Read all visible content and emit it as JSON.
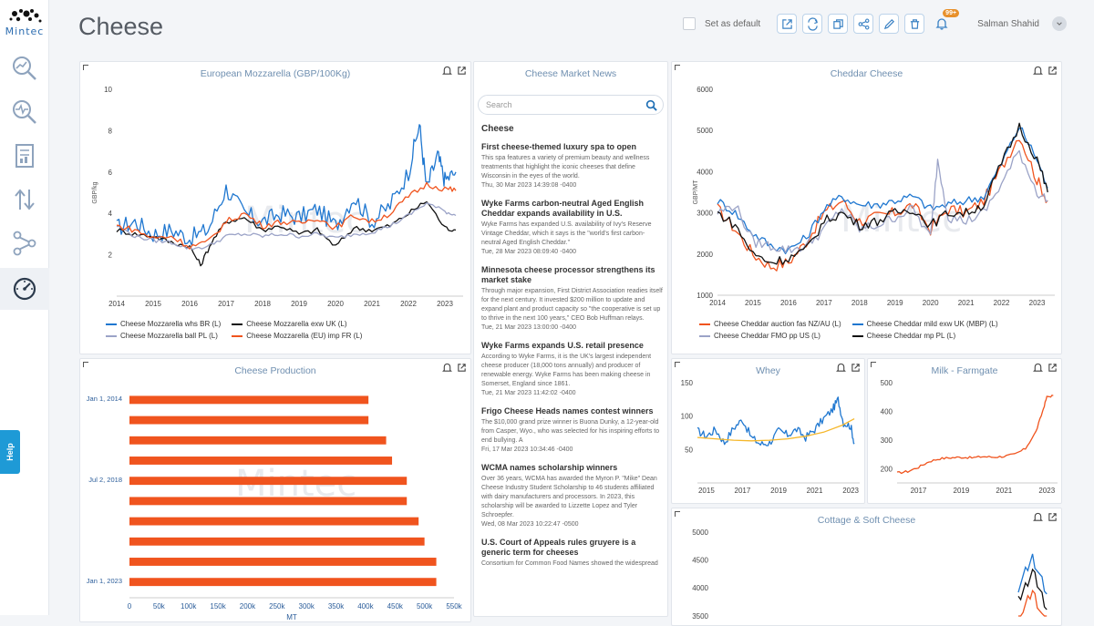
{
  "app": {
    "logo_text": "Mintec",
    "help_label": "Help",
    "watermark": "Mintec"
  },
  "sidebar": {
    "items": [
      {
        "name": "analytics",
        "icon": "search-chart-icon"
      },
      {
        "name": "market-monitor",
        "icon": "pulse-search-icon"
      },
      {
        "name": "reports",
        "icon": "report-icon"
      },
      {
        "name": "trade",
        "icon": "arrows-updown-icon"
      },
      {
        "name": "network",
        "icon": "network-icon"
      },
      {
        "name": "dashboards",
        "icon": "gauge-icon",
        "active": true
      }
    ]
  },
  "header": {
    "title": "Cheese",
    "set_default_label": "Set as default",
    "notification_badge": "99+",
    "user_name": "Salman Shahid"
  },
  "colors": {
    "blue": "#1f77d0",
    "black": "#111111",
    "grey": "#9ba3c7",
    "orange": "#f0541e",
    "yellow": "#f5b72a",
    "bar": "#f0541e"
  },
  "panels": {
    "mozzarella": {
      "title": "European Mozzarella (GBP/100Kg)",
      "ylabel": "GBP/kg",
      "yticks": [
        "2",
        "4",
        "6",
        "8",
        "10"
      ],
      "xticks": [
        "2014",
        "2015",
        "2016",
        "2017",
        "2018",
        "2019",
        "2020",
        "2021",
        "2022",
        "2023"
      ],
      "legend": [
        {
          "label": "Cheese Mozzarella whs BR (L)",
          "color": "#1f77d0"
        },
        {
          "label": "Cheese Mozzarella exw UK (L)",
          "color": "#111111"
        },
        {
          "label": "Cheese Mozzarella ball PL (L)",
          "color": "#9ba3c7"
        },
        {
          "label": "Cheese Mozzarella (EU) imp FR (L)",
          "color": "#f0541e"
        }
      ]
    },
    "news": {
      "title": "Cheese Market News",
      "search_placeholder": "Search",
      "section": "Cheese",
      "items": [
        {
          "headline": "First cheese-themed luxury spa to open",
          "summary": "This spa features a variety of premium beauty and wellness treatments that highlight the iconic cheeses that define Wisconsin in the eyes of the world.",
          "date": "Thu, 30 Mar 2023 14:39:08 -0400"
        },
        {
          "headline": "Wyke Farms carbon-neutral Aged English Cheddar expands availability in U.S.",
          "summary": "Wyke Farms has expanded U.S. availability of Ivy's Reserve Vintage Cheddar, which it says is the \"world's first carbon-neutral Aged English Cheddar.\"",
          "date": "Tue, 28 Mar 2023 08:09:40 -0400"
        },
        {
          "headline": "Minnesota cheese processor strengthens its market stake",
          "summary": "Through major expansion, First District Association readies itself for the next century. It invested $200 million to update and expand plant and product capacity so \"the cooperative is set up to thrive in the next 100 years,\" CEO Bob Huffman relays.",
          "date": "Tue, 21 Mar 2023 13:00:00 -0400"
        },
        {
          "headline": "Wyke Farms expands U.S. retail presence",
          "summary": "According to Wyke Farms, it is the UK's largest independent cheese producer (18,000 tons annually) and producer of renewable energy. Wyke Farms has been making cheese in Somerset, England since 1861.",
          "date": "Tue, 21 Mar 2023 11:42:02 -0400"
        },
        {
          "headline": "Frigo Cheese Heads names contest winners",
          "summary": "The $10,000 grand prize winner is Buona Dunky, a 12-year-old from Casper, Wyo., who was selected for his inspiring efforts to end bullying. A",
          "date": "Fri, 17 Mar 2023 10:34:46 -0400"
        },
        {
          "headline": "WCMA names scholarship winners",
          "summary": "Over 36 years, WCMA has awarded the Myron P. \"Mike\" Dean Cheese Industry Student Scholarship to 46 students affiliated with dairy manufacturers and processors. In 2023, this scholarship will be awarded to Lizzette Lopez and Tyler Schroepfer.",
          "date": "Wed, 08 Mar 2023 10:22:47 -0500"
        },
        {
          "headline": "U.S. Court of Appeals rules gruyere is a generic term for cheeses",
          "summary": "Consortium for Common Food Names showed the widespread",
          "date": ""
        }
      ]
    },
    "cheddar": {
      "title": "Cheddar Cheese",
      "ylabel": "GBP/MT",
      "yticks": [
        "1000",
        "2000",
        "3000",
        "4000",
        "5000",
        "6000"
      ],
      "xticks": [
        "2014",
        "2015",
        "2016",
        "2017",
        "2018",
        "2019",
        "2020",
        "2021",
        "2022",
        "2023"
      ],
      "legend": [
        {
          "label": "Cheese Cheddar auction fas NZ/AU (L)",
          "color": "#f0541e"
        },
        {
          "label": "Cheese Cheddar mild exw UK (MBP) (L)",
          "color": "#1f77d0"
        },
        {
          "label": "Cheese Cheddar FMO pp US (L)",
          "color": "#9ba3c7"
        },
        {
          "label": "Cheese Cheddar mp PL (L)",
          "color": "#111111"
        }
      ]
    },
    "production": {
      "title": "Cheese Production",
      "xlabel": "MT",
      "xticks": [
        "0",
        "50k",
        "100k",
        "150k",
        "200k",
        "250k",
        "300k",
        "350k",
        "400k",
        "450k",
        "500k",
        "550k"
      ],
      "ylabels": [
        "Jan 1, 2014",
        "Jul 2, 2018",
        "Jan 1, 2023"
      ]
    },
    "whey": {
      "title": "Whey",
      "yticks": [
        "50",
        "100",
        "150"
      ],
      "xticks": [
        "2015",
        "2017",
        "2019",
        "2021",
        "2023"
      ]
    },
    "milk": {
      "title": "Milk - Farmgate",
      "yticks": [
        "200",
        "300",
        "400",
        "500"
      ],
      "xticks": [
        "2017",
        "2019",
        "2021",
        "2023"
      ]
    },
    "cottage": {
      "title": "Cottage & Soft Cheese",
      "yticks": [
        "3500",
        "4000",
        "4500",
        "5000"
      ]
    }
  },
  "chart_data": [
    {
      "type": "line",
      "title": "European Mozzarella (GBP/100Kg)",
      "ylabel": "GBP/kg",
      "xlim": [
        2014,
        2023.5
      ],
      "ylim": [
        0,
        10
      ],
      "grid": false,
      "legend_position": "bottom",
      "series": [
        {
          "name": "Cheese Mozzarella whs BR (L)",
          "x": [
            2014,
            2014.5,
            2015,
            2015.5,
            2016,
            2016.5,
            2017,
            2017.5,
            2018,
            2018.5,
            2019,
            2019.5,
            2020,
            2020.5,
            2021,
            2021.5,
            2022,
            2022.3,
            2022.5,
            2022.8,
            2023,
            2023.3
          ],
          "y": [
            3.3,
            3.6,
            3.0,
            3.2,
            2.8,
            3.2,
            5.2,
            4.0,
            3.6,
            4.0,
            3.8,
            4.2,
            3.4,
            4.8,
            3.6,
            4.4,
            6.0,
            8.3,
            5.2,
            6.8,
            5.6,
            6.0
          ]
        },
        {
          "name": "Cheese Mozzarella exw UK (L)",
          "x": [
            2014,
            2014.5,
            2015,
            2015.5,
            2016,
            2016.3,
            2016.6,
            2017,
            2017.5,
            2018,
            2018.5,
            2019,
            2019.5,
            2020,
            2020.5,
            2021,
            2021.5,
            2022,
            2022.5,
            2023,
            2023.3
          ],
          "y": [
            3.2,
            3.0,
            2.9,
            2.6,
            2.4,
            1.5,
            2.6,
            3.6,
            3.8,
            3.2,
            3.4,
            3.0,
            3.2,
            2.4,
            3.3,
            3.2,
            3.4,
            4.0,
            4.6,
            3.3,
            3.2
          ]
        },
        {
          "name": "Cheese Mozzarella ball PL (L)",
          "x": [
            2014,
            2014.5,
            2015,
            2015.5,
            2016,
            2016.5,
            2017,
            2017.5,
            2018,
            2018.5,
            2019,
            2019.5,
            2020,
            2020.5,
            2021,
            2021.5,
            2022,
            2022.5,
            2023,
            2023.3
          ],
          "y": [
            3.4,
            2.9,
            2.7,
            2.6,
            2.3,
            2.4,
            2.9,
            3.0,
            2.9,
            3.0,
            2.9,
            3.0,
            2.8,
            3.0,
            3.1,
            3.4,
            3.9,
            4.5,
            4.1,
            3.9
          ]
        },
        {
          "name": "Cheese Mozzarella (EU) imp FR (L)",
          "x": [
            2014,
            2014.5,
            2015,
            2015.5,
            2016,
            2016.5,
            2017,
            2017.5,
            2018,
            2018.5,
            2019,
            2019.5,
            2020,
            2020.5,
            2021,
            2021.5,
            2022,
            2022.5,
            2023,
            2023.3
          ],
          "y": [
            3.4,
            3.2,
            2.8,
            2.9,
            2.4,
            2.6,
            3.6,
            4.0,
            3.4,
            3.6,
            3.5,
            3.8,
            3.3,
            3.9,
            3.6,
            4.0,
            4.8,
            5.4,
            5.2,
            5.1
          ]
        }
      ]
    },
    {
      "type": "line",
      "title": "Cheddar Cheese",
      "ylabel": "GBP/MT",
      "xlim": [
        2014,
        2023.5
      ],
      "ylim": [
        1000,
        6000
      ],
      "grid": false,
      "legend_position": "bottom",
      "series": [
        {
          "name": "Cheese Cheddar auction fas NZ/AU (L)",
          "x": [
            2014,
            2014.5,
            2015,
            2015.5,
            2016,
            2016.5,
            2017,
            2017.5,
            2018,
            2018.5,
            2019,
            2019.5,
            2020,
            2020.5,
            2021,
            2021.5,
            2022,
            2022.5,
            2023,
            2023.3
          ],
          "y": [
            3100,
            2600,
            2000,
            1700,
            1800,
            2300,
            3000,
            3300,
            2800,
            2900,
            3000,
            3200,
            2600,
            3100,
            3000,
            3300,
            4100,
            4900,
            3800,
            3300
          ]
        },
        {
          "name": "Cheese Cheddar mild exw UK (MBP) (L)",
          "x": [
            2014,
            2014.5,
            2015,
            2015.5,
            2016,
            2016.5,
            2017,
            2017.5,
            2018,
            2018.5,
            2019,
            2019.5,
            2020,
            2020.5,
            2021,
            2021.5,
            2022,
            2022.5,
            2023,
            2023.3
          ],
          "y": [
            3300,
            3000,
            2500,
            2200,
            2100,
            2400,
            3100,
            3400,
            3200,
            3200,
            3300,
            3400,
            3100,
            3200,
            3300,
            3400,
            4200,
            5100,
            4300,
            3600
          ]
        },
        {
          "name": "Cheese Cheddar FMO pp US (L)",
          "x": [
            2014,
            2014.5,
            2015,
            2015.5,
            2016,
            2016.5,
            2017,
            2017.5,
            2018,
            2018.5,
            2019,
            2019.5,
            2020,
            2020.2,
            2020.5,
            2021,
            2021.5,
            2022,
            2022.5,
            2023,
            2023.3
          ],
          "y": [
            3000,
            3200,
            2300,
            2200,
            2100,
            2200,
            2600,
            3100,
            2600,
            2700,
            2900,
            3100,
            2400,
            4300,
            2900,
            2800,
            3000,
            3700,
            4500,
            3500,
            3300
          ]
        },
        {
          "name": "Cheese Cheddar mp PL (L)",
          "x": [
            2014,
            2014.5,
            2015,
            2015.5,
            2016,
            2016.5,
            2017,
            2017.5,
            2018,
            2018.5,
            2019,
            2019.5,
            2020,
            2020.5,
            2021,
            2021.5,
            2022,
            2022.5,
            2023,
            2023.3
          ],
          "y": [
            3000,
            2700,
            2000,
            1800,
            1900,
            2100,
            2800,
            3000,
            2700,
            2800,
            3000,
            3100,
            2700,
            3000,
            3000,
            3200,
            4200,
            5100,
            4300,
            3500
          ]
        }
      ]
    },
    {
      "type": "bar",
      "orientation": "horizontal",
      "title": "Cheese Production",
      "xlabel": "MT",
      "xlim": [
        0,
        550000
      ],
      "categories": [
        "Jan 1, 2014",
        "",
        "",
        "",
        "Jul 2, 2018",
        "",
        "",
        "",
        "",
        "Jan 1, 2023"
      ],
      "values": [
        405000,
        405000,
        435000,
        445000,
        470000,
        470000,
        490000,
        500000,
        520000,
        520000
      ]
    },
    {
      "type": "line",
      "title": "Whey",
      "xlim": [
        2014.5,
        2023.5
      ],
      "ylim": [
        0,
        150
      ],
      "series": [
        {
          "name": "",
          "color": "blue",
          "x": [
            2014.5,
            2015,
            2015.5,
            2016,
            2016.5,
            2017,
            2017.5,
            2018,
            2018.5,
            2019,
            2019.5,
            2020,
            2020.5,
            2021,
            2021.5,
            2022,
            2022.3,
            2022.6,
            2023,
            2023.2
          ],
          "y": [
            78,
            70,
            80,
            60,
            82,
            95,
            68,
            58,
            60,
            78,
            72,
            80,
            68,
            80,
            96,
            110,
            125,
            90,
            85,
            60
          ]
        },
        {
          "name": "",
          "color": "yellow",
          "x": [
            2014.5,
            2015.5,
            2016.5,
            2017.5,
            2018.5,
            2019.5,
            2020.5,
            2021.5,
            2022.5,
            2023.2
          ],
          "y": [
            68,
            66,
            64,
            63,
            64,
            66,
            70,
            76,
            86,
            96
          ]
        }
      ]
    },
    {
      "type": "line",
      "title": "Milk - Farmgate",
      "xlim": [
        2016,
        2023.5
      ],
      "ylim": [
        150,
        500
      ],
      "series": [
        {
          "name": "",
          "color": "orange",
          "x": [
            2016,
            2016.5,
            2017,
            2017.5,
            2018,
            2018.5,
            2019,
            2019.5,
            2020,
            2020.5,
            2021,
            2021.5,
            2022,
            2022.5,
            2022.8,
            2023,
            2023.3
          ],
          "y": [
            185,
            190,
            205,
            225,
            235,
            238,
            240,
            238,
            242,
            240,
            243,
            250,
            270,
            330,
            400,
            450,
            455
          ]
        }
      ]
    }
  ]
}
